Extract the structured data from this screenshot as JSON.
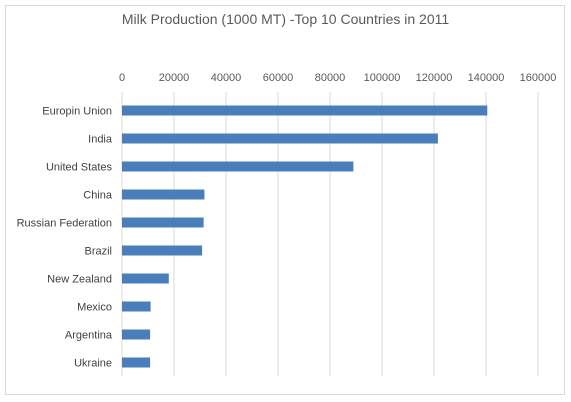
{
  "chart_data": {
    "type": "bar",
    "orientation": "horizontal",
    "title": "Milk Production (1000 MT) -Top 10 Countries in 2011",
    "xlabel": "",
    "ylabel": "",
    "categories": [
      "Europin Union",
      "India",
      "United States",
      "China",
      "Russian Federation",
      "Brazil",
      "New Zealand",
      "Mexico",
      "Argentina",
      "Ukraine"
    ],
    "values": [
      140500,
      121500,
      89000,
      31700,
      31400,
      30800,
      18000,
      11000,
      10800,
      10800
    ],
    "xlim": [
      0,
      160000
    ],
    "xticks": [
      0,
      20000,
      40000,
      60000,
      80000,
      100000,
      120000,
      140000,
      160000
    ],
    "xtick_labels": [
      "0",
      "20000",
      "40000",
      "60000",
      "80000",
      "100000",
      "120000",
      "140000",
      "160000"
    ],
    "axis_position": "top",
    "grid": "vertical",
    "legend": "none",
    "bar_color": "#4a7ebb",
    "grid_color": "#d9d9d9"
  }
}
